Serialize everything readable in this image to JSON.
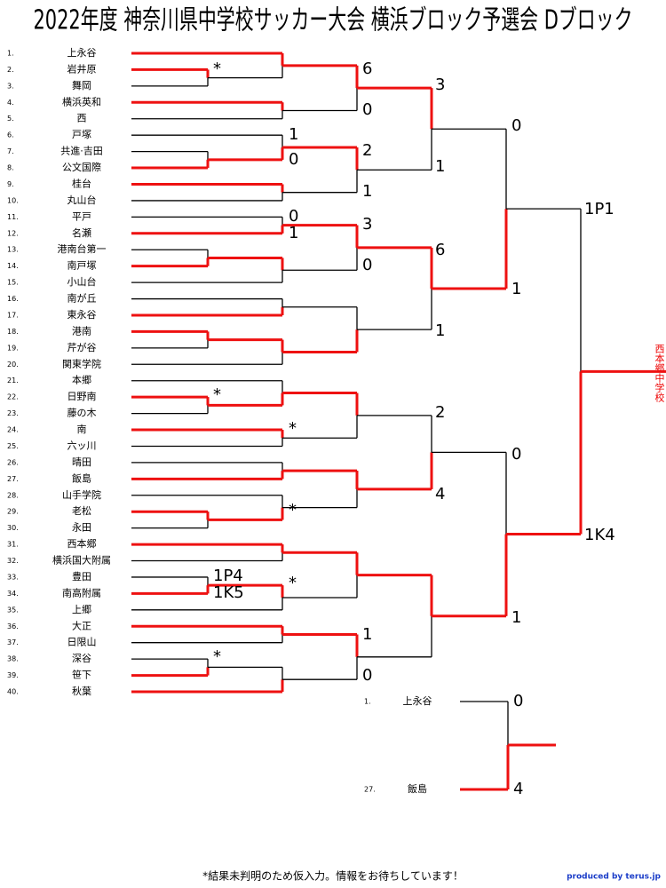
{
  "title": "2022年度 神奈川県中学校サッカー大会 横浜ブロック予選会 Dブロック",
  "teams": [
    {
      "no": "1.",
      "name": "上永谷"
    },
    {
      "no": "2.",
      "name": "岩井原"
    },
    {
      "no": "3.",
      "name": "舞岡"
    },
    {
      "no": "4.",
      "name": "横浜英和"
    },
    {
      "no": "5.",
      "name": "西"
    },
    {
      "no": "6.",
      "name": "戸塚"
    },
    {
      "no": "7.",
      "name": "共進·吉田"
    },
    {
      "no": "8.",
      "name": "公文国際"
    },
    {
      "no": "9.",
      "name": "桂台"
    },
    {
      "no": "10.",
      "name": "丸山台"
    },
    {
      "no": "11.",
      "name": "平戸"
    },
    {
      "no": "12.",
      "name": "名瀬"
    },
    {
      "no": "13.",
      "name": "港南台第一"
    },
    {
      "no": "14.",
      "name": "南戸塚"
    },
    {
      "no": "15.",
      "name": "小山台"
    },
    {
      "no": "16.",
      "name": "南が丘"
    },
    {
      "no": "17.",
      "name": "東永谷"
    },
    {
      "no": "18.",
      "name": "港南"
    },
    {
      "no": "19.",
      "name": "芹が谷"
    },
    {
      "no": "20.",
      "name": "関東学院"
    },
    {
      "no": "21.",
      "name": "本郷"
    },
    {
      "no": "22.",
      "name": "日野南"
    },
    {
      "no": "23.",
      "name": "藤の木"
    },
    {
      "no": "24.",
      "name": "南"
    },
    {
      "no": "25.",
      "name": "六ッ川"
    },
    {
      "no": "26.",
      "name": "晴田"
    },
    {
      "no": "27.",
      "name": "飯島"
    },
    {
      "no": "28.",
      "name": "山手学院"
    },
    {
      "no": "29.",
      "name": "老松"
    },
    {
      "no": "30.",
      "name": "永田"
    },
    {
      "no": "31.",
      "name": "西本郷"
    },
    {
      "no": "32.",
      "name": "横浜国大附属"
    },
    {
      "no": "33.",
      "name": "豊田"
    },
    {
      "no": "34.",
      "name": "南高附属"
    },
    {
      "no": "35.",
      "name": "上郷"
    },
    {
      "no": "36.",
      "name": "大正"
    },
    {
      "no": "37.",
      "name": "日限山"
    },
    {
      "no": "38.",
      "name": "深谷"
    },
    {
      "no": "39.",
      "name": "笹下"
    },
    {
      "no": "40.",
      "name": "秋葉"
    }
  ],
  "scores": [
    "*",
    6,
    0,
    3,
    1,
    0,
    2,
    1,
    1,
    0,
    0,
    1,
    3,
    0,
    6,
    1,
    1,
    "1P1",
    "*",
    "*",
    2,
    0,
    4,
    "*",
    "1P4",
    "1K5",
    "*",
    1,
    0,
    "*",
    1,
    "1K4"
  ],
  "champion": "西本郷中学校",
  "third_place": [
    {
      "no": "1.",
      "name": "上永谷",
      "score": 0
    },
    {
      "no": "27.",
      "name": "飯島",
      "score": 4
    }
  ],
  "footer": {
    "note": "*結果未判明のため仮入力。情報をお待ちしています！",
    "credit": "produced by terus.jp"
  }
}
